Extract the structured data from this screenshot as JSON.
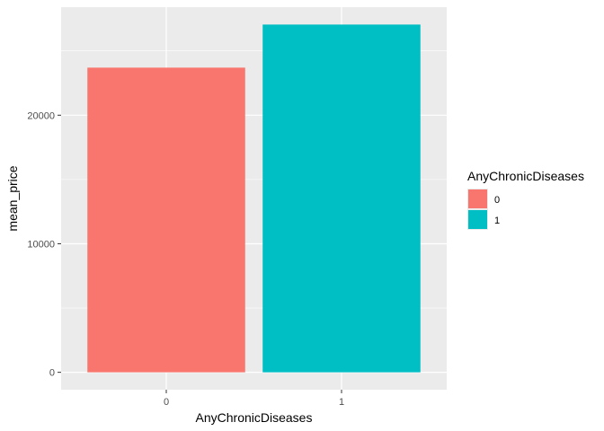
{
  "chart_data": {
    "type": "bar",
    "categories": [
      "0",
      "1"
    ],
    "values": [
      23700,
      27050
    ],
    "xlabel": "AnyChronicDiseases",
    "ylabel": "mean_price",
    "yticks": [
      0,
      10000,
      20000
    ],
    "ytick_labels": [
      "0",
      "10000",
      "20000"
    ],
    "ylim": [
      -1352.5,
      28402.5
    ],
    "grid": true,
    "legend": {
      "title": "AnyChronicDiseases",
      "position": "right",
      "items": [
        {
          "label": "0",
          "color": "#F8766D"
        },
        {
          "label": "1",
          "color": "#00BFC4"
        }
      ]
    },
    "colors": [
      "#F8766D",
      "#00BFC4"
    ],
    "panel_background": "#EBEBEB",
    "grid_color": "#FFFFFF"
  }
}
